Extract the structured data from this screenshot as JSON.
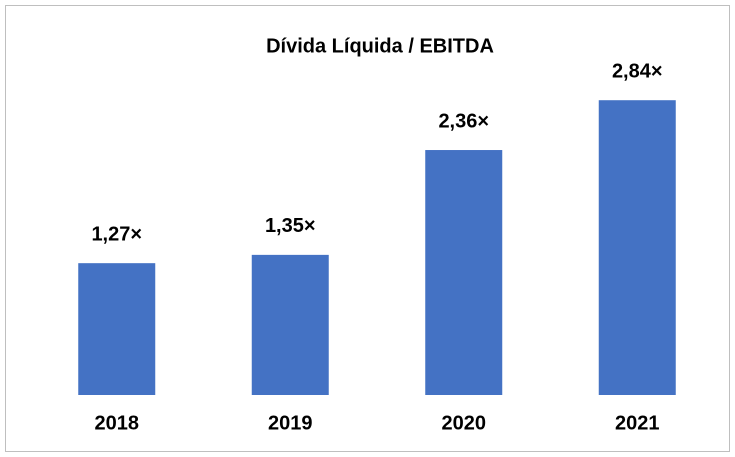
{
  "chart_data": {
    "type": "bar",
    "title": "Dívida Líquida / EBITDA",
    "categories": [
      "2018",
      "2019",
      "2020",
      "2021"
    ],
    "values": [
      1.27,
      1.35,
      2.36,
      2.84
    ],
    "value_labels": [
      "1,27×",
      "1,35×",
      "2,36×",
      "2,84×"
    ],
    "color": "#4472c4"
  }
}
